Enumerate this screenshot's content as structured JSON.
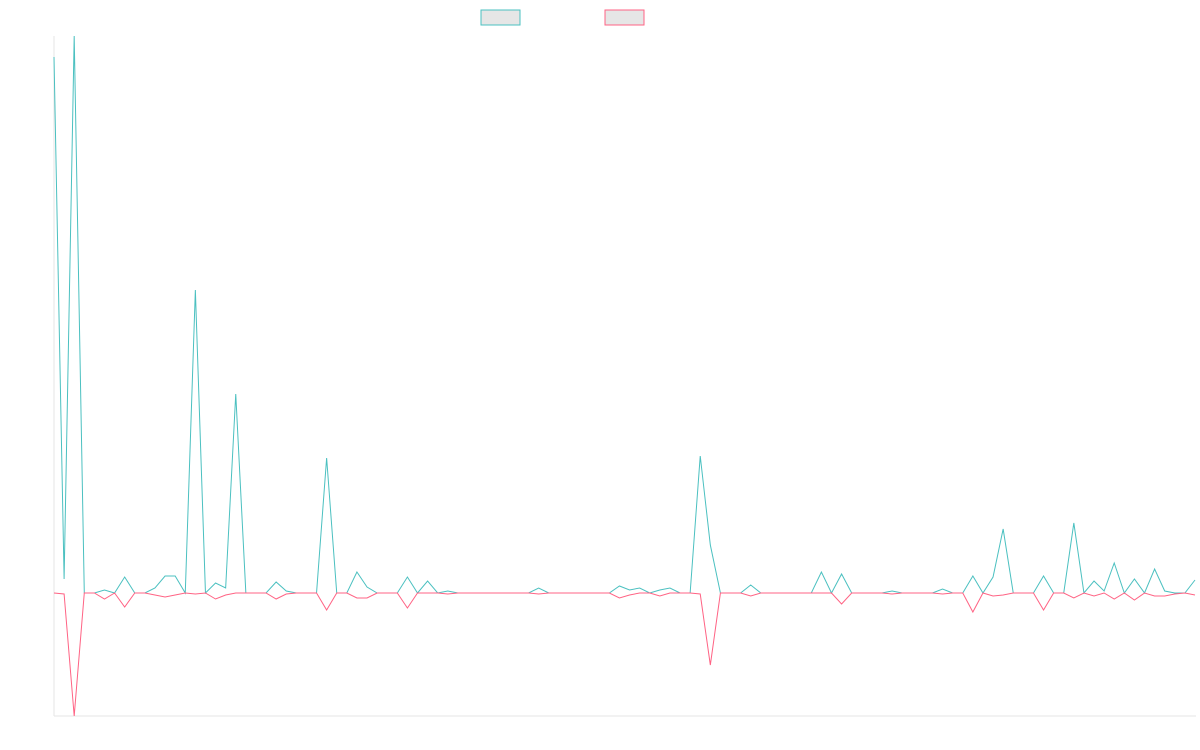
{
  "chart_data": {
    "type": "line",
    "ylim": [
      -123,
      557
    ],
    "series": [
      {
        "color": "#4bc0c0",
        "values": [
          536,
          14,
          557,
          0,
          0,
          3,
          0,
          16,
          0,
          0,
          5,
          17,
          17,
          0,
          303,
          0,
          10,
          5,
          199,
          0,
          0,
          0,
          11,
          2,
          0,
          0,
          0,
          135,
          0,
          0,
          21,
          6,
          0,
          0,
          0,
          16,
          0,
          12,
          0,
          2,
          0,
          0,
          0,
          0,
          0,
          0,
          0,
          0,
          5,
          0,
          0,
          0,
          0,
          0,
          0,
          0,
          7,
          3,
          5,
          0,
          3,
          5,
          0,
          0,
          137,
          48,
          0,
          0,
          0,
          8,
          0,
          0,
          0,
          0,
          0,
          0,
          21,
          0,
          19,
          0,
          0,
          0,
          0,
          2,
          0,
          0,
          0,
          0,
          4,
          0,
          0,
          17,
          0,
          16,
          64,
          0,
          0,
          0,
          17,
          0,
          0,
          70,
          0,
          12,
          2,
          30,
          0,
          14,
          0,
          24,
          2,
          0,
          0,
          13
        ]
      },
      {
        "color": "#ff6384",
        "values": [
          0,
          -1,
          -123,
          0,
          0,
          -6,
          0,
          -14,
          0,
          0,
          -2,
          -4,
          -2,
          0,
          -1,
          0,
          -6,
          -2,
          0,
          0,
          0,
          0,
          -6,
          -1,
          0,
          0,
          0,
          -17,
          0,
          0,
          -5,
          -5,
          0,
          0,
          0,
          -15,
          0,
          0,
          0,
          -1,
          0,
          0,
          0,
          0,
          0,
          0,
          0,
          0,
          -1,
          0,
          0,
          0,
          0,
          0,
          0,
          0,
          -5,
          -2,
          0,
          0,
          -3,
          0,
          0,
          0,
          -1,
          -72,
          0,
          0,
          0,
          -3,
          0,
          0,
          0,
          0,
          0,
          0,
          0,
          0,
          -11,
          0,
          0,
          0,
          0,
          -1,
          0,
          0,
          0,
          0,
          -1,
          0,
          0,
          -19,
          0,
          -3,
          -2,
          0,
          0,
          0,
          -17,
          0,
          0,
          -5,
          0,
          -3,
          0,
          -6,
          0,
          -7,
          0,
          -3,
          -3,
          -1,
          0,
          -2
        ]
      }
    ]
  }
}
